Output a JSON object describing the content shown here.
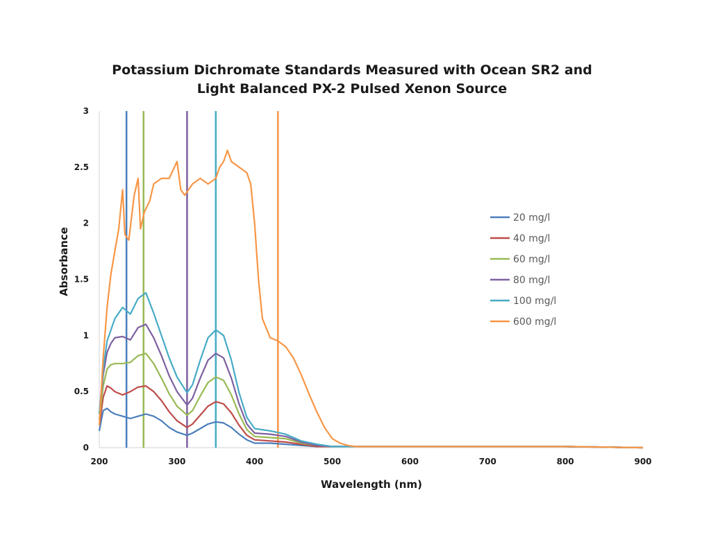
{
  "chart_data": {
    "type": "line",
    "title_lines": [
      "Potassium Dichromate Standards Measured with Ocean SR2 and",
      "Light Balanced PX-2 Pulsed Xenon Source"
    ],
    "xlabel": "Wavelength (nm)",
    "ylabel": "Absorbance",
    "xlim": [
      200,
      900
    ],
    "ylim": [
      0,
      3
    ],
    "x_ticks": [
      200,
      300,
      400,
      500,
      600,
      700,
      800,
      900
    ],
    "y_ticks": [
      0,
      0.5,
      1,
      1.5,
      2,
      2.5,
      3
    ],
    "y_tick_labels": [
      "0",
      "0.5",
      "1",
      "1.5",
      "2",
      "2.5",
      "3"
    ],
    "grid": false,
    "legend_position": "right",
    "series": [
      {
        "name": "20 mg/l",
        "color": "#4a7ebb",
        "x": [
          200,
          205,
          210,
          215,
          220,
          230,
          240,
          250,
          260,
          270,
          280,
          290,
          300,
          313,
          320,
          330,
          340,
          350,
          360,
          370,
          380,
          390,
          400,
          420,
          440,
          460,
          480,
          500,
          550,
          600,
          700,
          800,
          900
        ],
        "y": [
          0.15,
          0.33,
          0.35,
          0.32,
          0.3,
          0.28,
          0.26,
          0.28,
          0.3,
          0.28,
          0.24,
          0.18,
          0.14,
          0.11,
          0.13,
          0.17,
          0.21,
          0.23,
          0.22,
          0.18,
          0.12,
          0.07,
          0.04,
          0.04,
          0.03,
          0.02,
          0.01,
          0.01,
          0.01,
          0.01,
          0.01,
          0.01,
          0.0
        ]
      },
      {
        "name": "40 mg/l",
        "color": "#be4b48",
        "x": [
          200,
          205,
          210,
          215,
          220,
          230,
          240,
          250,
          260,
          270,
          280,
          290,
          300,
          313,
          320,
          330,
          340,
          350,
          360,
          370,
          380,
          390,
          400,
          420,
          440,
          460,
          480,
          500,
          550,
          600,
          700,
          800,
          900
        ],
        "y": [
          0.2,
          0.45,
          0.55,
          0.53,
          0.5,
          0.47,
          0.5,
          0.54,
          0.55,
          0.5,
          0.42,
          0.32,
          0.24,
          0.18,
          0.21,
          0.29,
          0.37,
          0.41,
          0.39,
          0.31,
          0.2,
          0.11,
          0.07,
          0.06,
          0.05,
          0.03,
          0.01,
          0.01,
          0.01,
          0.01,
          0.01,
          0.01,
          0.0
        ]
      },
      {
        "name": "60 mg/l",
        "color": "#98b954",
        "x": [
          200,
          205,
          210,
          215,
          220,
          230,
          240,
          250,
          260,
          270,
          280,
          290,
          300,
          313,
          320,
          330,
          340,
          350,
          360,
          370,
          380,
          390,
          400,
          420,
          440,
          460,
          480,
          500,
          550,
          600,
          700,
          800,
          900
        ],
        "y": [
          0.25,
          0.55,
          0.7,
          0.74,
          0.75,
          0.75,
          0.76,
          0.82,
          0.84,
          0.75,
          0.62,
          0.48,
          0.37,
          0.29,
          0.33,
          0.46,
          0.58,
          0.63,
          0.6,
          0.47,
          0.3,
          0.16,
          0.1,
          0.09,
          0.08,
          0.04,
          0.02,
          0.01,
          0.01,
          0.01,
          0.01,
          0.01,
          0.0
        ]
      },
      {
        "name": "80 mg/l",
        "color": "#7d60a0",
        "x": [
          200,
          205,
          210,
          215,
          220,
          230,
          240,
          250,
          260,
          270,
          280,
          290,
          300,
          313,
          320,
          330,
          340,
          350,
          360,
          370,
          380,
          390,
          400,
          420,
          440,
          460,
          480,
          500,
          550,
          600,
          700,
          800,
          900
        ],
        "y": [
          0.3,
          0.65,
          0.85,
          0.93,
          0.98,
          0.99,
          0.96,
          1.07,
          1.1,
          0.98,
          0.82,
          0.64,
          0.5,
          0.38,
          0.44,
          0.62,
          0.78,
          0.84,
          0.8,
          0.62,
          0.39,
          0.21,
          0.13,
          0.12,
          0.1,
          0.05,
          0.02,
          0.01,
          0.01,
          0.01,
          0.01,
          0.01,
          0.0
        ]
      },
      {
        "name": "100 mg/l",
        "color": "#46aac5",
        "x": [
          200,
          205,
          210,
          215,
          220,
          230,
          240,
          250,
          260,
          270,
          280,
          290,
          300,
          313,
          320,
          330,
          340,
          350,
          360,
          370,
          380,
          390,
          400,
          420,
          440,
          460,
          480,
          500,
          550,
          600,
          700,
          800,
          900
        ],
        "y": [
          0.3,
          0.7,
          0.95,
          1.05,
          1.15,
          1.25,
          1.19,
          1.33,
          1.38,
          1.2,
          1.0,
          0.8,
          0.63,
          0.49,
          0.56,
          0.78,
          0.98,
          1.05,
          1.0,
          0.78,
          0.49,
          0.27,
          0.17,
          0.15,
          0.12,
          0.06,
          0.03,
          0.01,
          0.01,
          0.01,
          0.01,
          0.01,
          0.0
        ]
      },
      {
        "name": "600 mg/l",
        "color": "#f79646",
        "x": [
          200,
          205,
          210,
          215,
          220,
          225,
          230,
          233,
          238,
          245,
          250,
          253,
          258,
          265,
          270,
          280,
          290,
          300,
          305,
          310,
          315,
          320,
          330,
          340,
          350,
          355,
          360,
          365,
          370,
          380,
          390,
          395,
          400,
          405,
          410,
          420,
          430,
          440,
          450,
          460,
          470,
          480,
          490,
          500,
          510,
          520,
          530,
          540,
          560,
          600,
          700,
          800,
          900
        ],
        "y": [
          0.2,
          0.8,
          1.25,
          1.55,
          1.75,
          1.95,
          2.3,
          1.9,
          1.85,
          2.25,
          2.4,
          1.95,
          2.1,
          2.2,
          2.35,
          2.4,
          2.4,
          2.55,
          2.3,
          2.25,
          2.3,
          2.35,
          2.4,
          2.35,
          2.4,
          2.5,
          2.55,
          2.65,
          2.55,
          2.5,
          2.45,
          2.35,
          2.0,
          1.5,
          1.15,
          0.98,
          0.95,
          0.9,
          0.8,
          0.65,
          0.48,
          0.32,
          0.18,
          0.08,
          0.04,
          0.02,
          0.01,
          0.01,
          0.01,
          0.01,
          0.01,
          0.01,
          0.0
        ]
      }
    ],
    "vertical_markers": [
      {
        "x": 235,
        "color": "#4a7ebb"
      },
      {
        "x": 257,
        "color": "#98b954"
      },
      {
        "x": 313,
        "color": "#7d60a0"
      },
      {
        "x": 350,
        "color": "#46aac5"
      },
      {
        "x": 430,
        "color": "#f79646"
      }
    ]
  }
}
